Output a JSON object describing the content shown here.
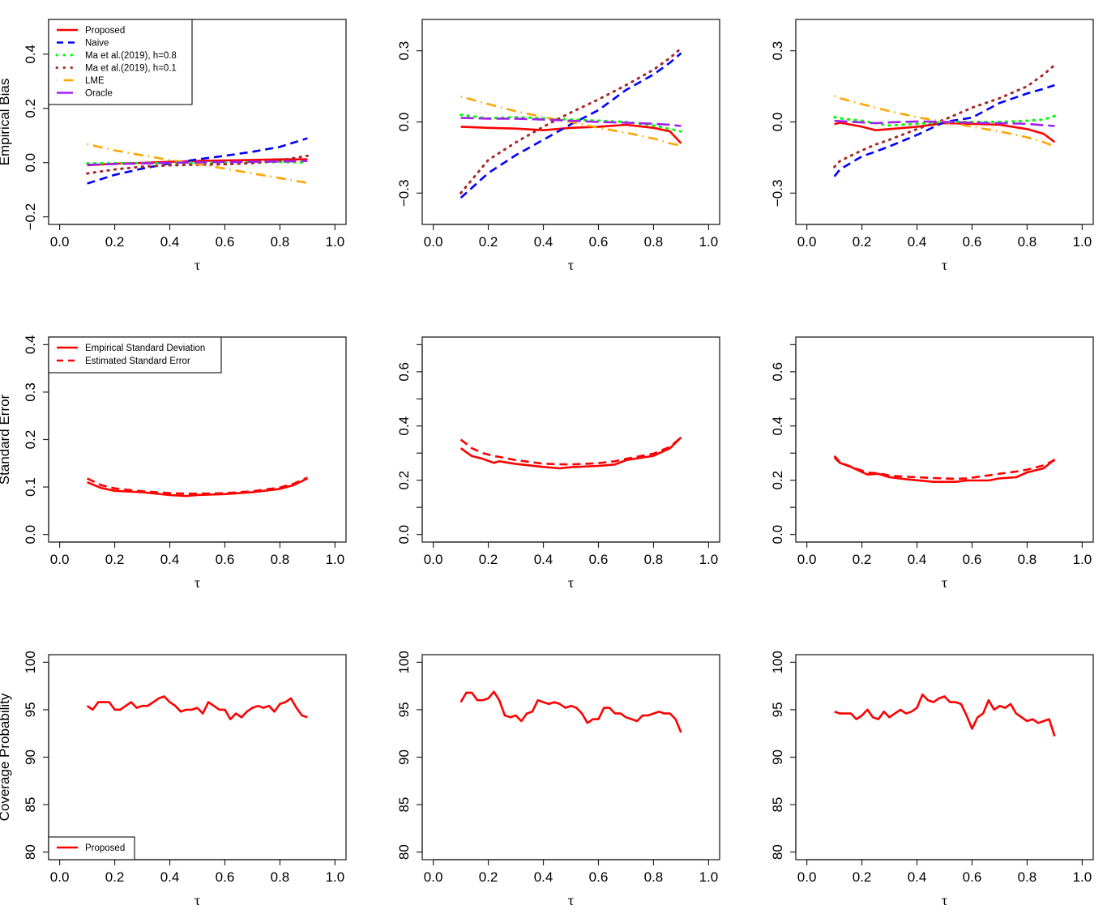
{
  "figure": {
    "row_titles": [
      "Empirical Bias",
      "Standard Error",
      "Coverage Probability"
    ],
    "x_axis_label": "τ"
  },
  "legends": {
    "bias": [
      {
        "label": "Proposed",
        "color": "#ff0000",
        "style": "solid"
      },
      {
        "label": "Naive",
        "color": "#0000ff",
        "style": "dashed"
      },
      {
        "label": "Ma et al.(2019), h=0.8",
        "color": "#00ff00",
        "style": "dotted"
      },
      {
        "label": "Ma et al.(2019), h=0.1",
        "color": "#a52a2a",
        "style": "dotted"
      },
      {
        "label": "LME",
        "color": "#ffa500",
        "style": "dotdash"
      },
      {
        "label": "Oracle",
        "color": "#a020f0",
        "style": "longdash"
      }
    ],
    "se": [
      {
        "label": "Empirical Standard Deviation",
        "color": "#ff0000",
        "style": "solid"
      },
      {
        "label": "Estimated Standard Error",
        "color": "#ff0000",
        "style": "dashed"
      }
    ],
    "cp": [
      {
        "label": "Proposed",
        "color": "#ff0000",
        "style": "solid"
      }
    ]
  },
  "chart_data": [
    {
      "type": "line",
      "row": 0,
      "col": 0,
      "title": "",
      "xlabel": "τ",
      "ylabel": "Empirical Bias",
      "xlim": [
        0,
        1
      ],
      "ylim": [
        -0.2,
        0.5
      ],
      "xticks": [
        0.0,
        0.2,
        0.4,
        0.6,
        0.8,
        1.0
      ],
      "yticks": [
        -0.2,
        0.0,
        0.2,
        0.4
      ],
      "ytick_labels": [
        "−0.2",
        "0.0",
        "0.2",
        "0.4"
      ],
      "legend": "bias",
      "legend_position": "top-left",
      "x": [
        0.1,
        0.2,
        0.3,
        0.4,
        0.5,
        0.6,
        0.7,
        0.8,
        0.9
      ],
      "series": [
        {
          "name": "Proposed",
          "values": [
            -0.01,
            -0.004,
            -0.001,
            0.003,
            0.006,
            0.008,
            0.01,
            0.012,
            0.012
          ]
        },
        {
          "name": "Naive",
          "values": [
            -0.077,
            -0.045,
            -0.022,
            -0.003,
            0.012,
            0.025,
            0.04,
            0.058,
            0.09
          ]
        },
        {
          "name": "Ma et al.(2019), h=0.8",
          "values": [
            -0.003,
            -0.002,
            -0.002,
            -0.002,
            0.0,
            0.0,
            0.001,
            0.002,
            0.001
          ]
        },
        {
          "name": "Ma et al.(2019), h=0.1",
          "values": [
            -0.04,
            -0.025,
            -0.015,
            -0.01,
            -0.008,
            -0.006,
            -0.002,
            0.008,
            0.025
          ]
        },
        {
          "name": "LME",
          "values": [
            0.068,
            0.045,
            0.027,
            0.01,
            -0.005,
            -0.022,
            -0.04,
            -0.057,
            -0.075
          ]
        },
        {
          "name": "Oracle",
          "values": [
            -0.008,
            -0.005,
            -0.003,
            -0.001,
            0.001,
            0.002,
            0.003,
            0.004,
            0.006
          ]
        }
      ]
    },
    {
      "type": "line",
      "row": 0,
      "col": 1,
      "title": "",
      "xlabel": "τ",
      "ylabel": "",
      "xlim": [
        0,
        1
      ],
      "ylim": [
        -0.4,
        0.4
      ],
      "xticks": [
        0.0,
        0.2,
        0.4,
        0.6,
        0.8,
        1.0
      ],
      "yticks": [
        -0.3,
        0.0,
        0.3
      ],
      "ytick_labels": [
        "−0.3",
        "0.0",
        "0.3"
      ],
      "x": [
        0.1,
        0.2,
        0.3,
        0.4,
        0.5,
        0.6,
        0.7,
        0.8,
        0.86,
        0.9
      ],
      "series": [
        {
          "name": "Proposed",
          "values": [
            -0.02,
            -0.025,
            -0.028,
            -0.035,
            -0.025,
            -0.02,
            -0.012,
            -0.025,
            -0.04,
            -0.09
          ]
        },
        {
          "name": "Naive",
          "values": [
            -0.32,
            -0.215,
            -0.14,
            -0.075,
            -0.01,
            0.05,
            0.135,
            0.2,
            0.25,
            0.29
          ]
        },
        {
          "name": "Ma et al.(2019), h=0.8",
          "values": [
            0.03,
            0.015,
            0.02,
            0.015,
            0.01,
            0.005,
            0.0,
            -0.015,
            -0.03,
            -0.04
          ]
        },
        {
          "name": "Ma et al.(2019), h=0.1",
          "values": [
            -0.3,
            -0.16,
            -0.086,
            -0.02,
            0.04,
            0.095,
            0.155,
            0.22,
            0.27,
            0.31
          ]
        },
        {
          "name": "LME",
          "values": [
            0.107,
            0.075,
            0.045,
            0.02,
            0.0,
            -0.025,
            -0.045,
            -0.07,
            -0.09,
            -0.1
          ]
        },
        {
          "name": "Oracle",
          "values": [
            0.017,
            0.014,
            0.014,
            0.01,
            0.005,
            0.0,
            -0.003,
            -0.008,
            -0.012,
            -0.017
          ]
        }
      ]
    },
    {
      "type": "line",
      "row": 0,
      "col": 2,
      "title": "",
      "xlabel": "τ",
      "ylabel": "",
      "xlim": [
        0,
        1
      ],
      "ylim": [
        -0.4,
        0.4
      ],
      "xticks": [
        0.0,
        0.2,
        0.4,
        0.6,
        0.8,
        1.0
      ],
      "yticks": [
        -0.3,
        0.0,
        0.3
      ],
      "ytick_labels": [
        "−0.3",
        "0.0",
        "0.3"
      ],
      "x": [
        0.1,
        0.12,
        0.2,
        0.25,
        0.3,
        0.4,
        0.5,
        0.6,
        0.7,
        0.8,
        0.86,
        0.9
      ],
      "series": [
        {
          "name": "Proposed",
          "values": [
            -0.01,
            -0.003,
            -0.02,
            -0.035,
            -0.03,
            -0.02,
            -0.005,
            -0.008,
            -0.012,
            -0.03,
            -0.05,
            -0.085
          ]
        },
        {
          "name": "Naive",
          "values": [
            -0.23,
            -0.2,
            -0.145,
            -0.125,
            -0.103,
            -0.055,
            0.0,
            0.018,
            0.08,
            0.12,
            0.14,
            0.155
          ]
        },
        {
          "name": "Ma et al.(2019), h=0.8",
          "values": [
            0.02,
            0.015,
            0.005,
            -0.005,
            -0.015,
            -0.008,
            0.0,
            0.0,
            0.0,
            0.005,
            0.01,
            0.025
          ]
        },
        {
          "name": "Ma et al.(2019), h=0.1",
          "values": [
            -0.19,
            -0.165,
            -0.12,
            -0.095,
            -0.075,
            -0.03,
            0.01,
            0.06,
            0.1,
            0.15,
            0.2,
            0.24
          ]
        },
        {
          "name": "LME",
          "values": [
            0.11,
            0.1,
            0.075,
            0.06,
            0.045,
            0.02,
            0.0,
            -0.02,
            -0.04,
            -0.065,
            -0.085,
            -0.103
          ]
        },
        {
          "name": "Oracle",
          "values": [
            0.005,
            0.003,
            -0.002,
            -0.005,
            -0.002,
            0.002,
            0.0,
            -0.003,
            -0.005,
            -0.008,
            -0.014,
            -0.017
          ]
        }
      ]
    },
    {
      "type": "line",
      "row": 1,
      "col": 0,
      "title": "",
      "xlabel": "τ",
      "ylabel": "Standard Error",
      "xlim": [
        0,
        1
      ],
      "ylim": [
        0,
        0.4
      ],
      "xticks": [
        0.0,
        0.2,
        0.4,
        0.6,
        0.8,
        1.0
      ],
      "yticks": [
        0.0,
        0.1,
        0.2,
        0.3,
        0.4
      ],
      "ytick_labels": [
        "0.0",
        "0.1",
        "0.2",
        "0.3",
        "0.4"
      ],
      "legend": "se",
      "legend_position": "top-left",
      "x": [
        0.1,
        0.15,
        0.2,
        0.3,
        0.4,
        0.46,
        0.5,
        0.6,
        0.7,
        0.8,
        0.85,
        0.9
      ],
      "series": [
        {
          "name": "Empirical Standard Deviation",
          "values": [
            0.11,
            0.098,
            0.092,
            0.089,
            0.083,
            0.081,
            0.083,
            0.085,
            0.089,
            0.096,
            0.104,
            0.118
          ]
        },
        {
          "name": "Estimated Standard Error",
          "values": [
            0.118,
            0.104,
            0.097,
            0.091,
            0.087,
            0.086,
            0.086,
            0.087,
            0.091,
            0.099,
            0.107,
            0.12
          ]
        }
      ]
    },
    {
      "type": "line",
      "row": 1,
      "col": 1,
      "title": "",
      "xlabel": "τ",
      "ylabel": "",
      "xlim": [
        0,
        1
      ],
      "ylim": [
        0,
        0.7
      ],
      "xticks": [
        0.0,
        0.2,
        0.4,
        0.6,
        0.8,
        1.0
      ],
      "yticks": [
        0.0,
        0.1,
        0.2,
        0.3,
        0.4,
        0.5,
        0.6,
        0.7
      ],
      "ytick_labels": [
        "0.0",
        "",
        "0.2",
        "",
        "0.4",
        "",
        "0.6",
        ""
      ],
      "x": [
        0.1,
        0.14,
        0.18,
        0.22,
        0.24,
        0.3,
        0.4,
        0.46,
        0.5,
        0.6,
        0.66,
        0.7,
        0.8,
        0.86,
        0.9
      ],
      "series": [
        {
          "name": "Empirical Standard Deviation",
          "values": [
            0.318,
            0.289,
            0.279,
            0.264,
            0.27,
            0.26,
            0.249,
            0.244,
            0.248,
            0.253,
            0.258,
            0.274,
            0.29,
            0.318,
            0.358
          ]
        },
        {
          "name": "Estimated Standard Error",
          "values": [
            0.35,
            0.318,
            0.3,
            0.289,
            0.286,
            0.274,
            0.261,
            0.259,
            0.258,
            0.263,
            0.27,
            0.279,
            0.298,
            0.323,
            0.358
          ]
        }
      ]
    },
    {
      "type": "line",
      "row": 1,
      "col": 2,
      "title": "",
      "xlabel": "τ",
      "ylabel": "",
      "xlim": [
        0,
        1
      ],
      "ylim": [
        0,
        0.7
      ],
      "xticks": [
        0.0,
        0.2,
        0.4,
        0.6,
        0.8,
        1.0
      ],
      "yticks": [
        0.0,
        0.1,
        0.2,
        0.3,
        0.4,
        0.5,
        0.6,
        0.7
      ],
      "ytick_labels": [
        "0.0",
        "",
        "0.2",
        "",
        "0.4",
        "",
        "0.6",
        ""
      ],
      "x": [
        0.1,
        0.12,
        0.16,
        0.22,
        0.26,
        0.3,
        0.36,
        0.46,
        0.54,
        0.58,
        0.66,
        0.7,
        0.76,
        0.8,
        0.86,
        0.9
      ],
      "series": [
        {
          "name": "Empirical Standard Deviation",
          "values": [
            0.284,
            0.264,
            0.249,
            0.221,
            0.224,
            0.211,
            0.204,
            0.194,
            0.194,
            0.199,
            0.199,
            0.207,
            0.211,
            0.229,
            0.244,
            0.277
          ]
        },
        {
          "name": "Estimated Standard Error",
          "values": [
            0.29,
            0.266,
            0.25,
            0.228,
            0.226,
            0.217,
            0.213,
            0.208,
            0.205,
            0.207,
            0.218,
            0.224,
            0.232,
            0.239,
            0.255,
            0.274
          ]
        }
      ]
    },
    {
      "type": "line",
      "row": 2,
      "col": 0,
      "title": "",
      "xlabel": "τ",
      "ylabel": "Coverage Probability",
      "xlim": [
        0,
        1
      ],
      "ylim": [
        80,
        100
      ],
      "xticks": [
        0.0,
        0.2,
        0.4,
        0.6,
        0.8,
        1.0
      ],
      "yticks": [
        80,
        85,
        90,
        95,
        100
      ],
      "ytick_labels": [
        "80",
        "85",
        "90",
        "95",
        "100"
      ],
      "legend": "cp",
      "legend_position": "bottom-left",
      "x": [
        0.1,
        0.12,
        0.14,
        0.16,
        0.18,
        0.2,
        0.22,
        0.24,
        0.26,
        0.28,
        0.3,
        0.32,
        0.34,
        0.36,
        0.38,
        0.4,
        0.42,
        0.44,
        0.46,
        0.48,
        0.5,
        0.52,
        0.54,
        0.56,
        0.58,
        0.6,
        0.62,
        0.64,
        0.66,
        0.68,
        0.7,
        0.72,
        0.74,
        0.76,
        0.78,
        0.8,
        0.82,
        0.84,
        0.86,
        0.88,
        0.9
      ],
      "series": [
        {
          "name": "Proposed",
          "values": [
            95.4,
            95.0,
            95.8,
            95.8,
            95.8,
            95.0,
            95.0,
            95.4,
            95.8,
            95.2,
            95.4,
            95.4,
            95.8,
            96.2,
            96.4,
            95.8,
            95.4,
            94.8,
            95.0,
            95.0,
            95.2,
            94.6,
            95.8,
            95.4,
            95.0,
            95.0,
            94.0,
            94.6,
            94.2,
            94.8,
            95.2,
            95.4,
            95.2,
            95.4,
            94.8,
            95.6,
            95.8,
            96.2,
            95.2,
            94.4,
            94.2
          ]
        }
      ]
    },
    {
      "type": "line",
      "row": 2,
      "col": 1,
      "title": "",
      "xlabel": "τ",
      "ylabel": "",
      "xlim": [
        0,
        1
      ],
      "ylim": [
        80,
        100
      ],
      "xticks": [
        0.0,
        0.2,
        0.4,
        0.6,
        0.8,
        1.0
      ],
      "yticks": [
        80,
        85,
        90,
        95,
        100
      ],
      "ytick_labels": [
        "80",
        "85",
        "90",
        "95",
        "100"
      ],
      "x": [
        0.1,
        0.12,
        0.14,
        0.16,
        0.18,
        0.2,
        0.22,
        0.24,
        0.26,
        0.28,
        0.3,
        0.32,
        0.34,
        0.36,
        0.38,
        0.4,
        0.42,
        0.44,
        0.46,
        0.48,
        0.5,
        0.52,
        0.54,
        0.56,
        0.58,
        0.6,
        0.62,
        0.64,
        0.66,
        0.68,
        0.7,
        0.72,
        0.74,
        0.76,
        0.78,
        0.8,
        0.82,
        0.84,
        0.86,
        0.88,
        0.9
      ],
      "series": [
        {
          "name": "Proposed",
          "values": [
            95.8,
            96.8,
            96.8,
            96.0,
            96.0,
            96.2,
            96.9,
            96.0,
            94.4,
            94.2,
            94.4,
            93.8,
            94.6,
            94.8,
            96.0,
            95.8,
            95.6,
            95.8,
            95.6,
            95.2,
            95.4,
            95.2,
            94.6,
            93.6,
            94.0,
            94.0,
            95.2,
            95.2,
            94.6,
            94.6,
            94.2,
            94.0,
            93.8,
            94.4,
            94.4,
            94.6,
            94.8,
            94.6,
            94.6,
            94.0,
            92.6
          ]
        }
      ]
    },
    {
      "type": "line",
      "row": 2,
      "col": 2,
      "title": "",
      "xlabel": "τ",
      "ylabel": "",
      "xlim": [
        0,
        1
      ],
      "ylim": [
        80,
        100
      ],
      "xticks": [
        0.0,
        0.2,
        0.4,
        0.6,
        0.8,
        1.0
      ],
      "yticks": [
        80,
        85,
        90,
        95,
        100
      ],
      "ytick_labels": [
        "80",
        "85",
        "90",
        "95",
        "100"
      ],
      "x": [
        0.1,
        0.12,
        0.14,
        0.16,
        0.18,
        0.2,
        0.22,
        0.24,
        0.26,
        0.28,
        0.3,
        0.32,
        0.34,
        0.36,
        0.38,
        0.4,
        0.42,
        0.44,
        0.46,
        0.48,
        0.5,
        0.52,
        0.54,
        0.56,
        0.58,
        0.6,
        0.62,
        0.64,
        0.66,
        0.68,
        0.7,
        0.72,
        0.74,
        0.76,
        0.78,
        0.8,
        0.82,
        0.84,
        0.86,
        0.88,
        0.9
      ],
      "series": [
        {
          "name": "Proposed",
          "values": [
            94.8,
            94.6,
            94.6,
            94.6,
            94.0,
            94.4,
            95.0,
            94.2,
            94.0,
            94.8,
            94.2,
            94.6,
            95.0,
            94.6,
            94.8,
            95.2,
            96.6,
            96.0,
            95.8,
            96.2,
            96.4,
            95.8,
            95.8,
            95.6,
            94.4,
            93.0,
            94.2,
            94.6,
            96.0,
            95.0,
            95.4,
            95.2,
            95.6,
            94.6,
            94.2,
            93.8,
            94.0,
            93.6,
            93.8,
            94.0,
            92.2
          ]
        }
      ]
    }
  ]
}
